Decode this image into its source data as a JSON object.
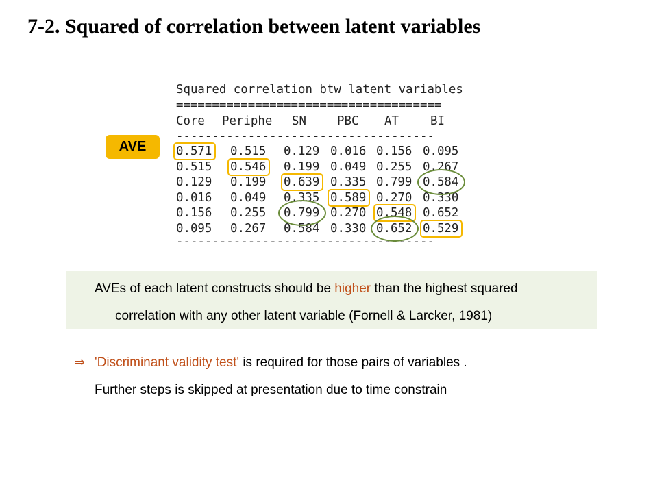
{
  "title": "7-2. Squared of correlation between latent variables",
  "table": {
    "heading": "Squared correlation btw latent variables",
    "double_rule": "=====================================",
    "single_rule": "------------------------------------",
    "columns": [
      "Core",
      "Periphe",
      "SN",
      "PBC",
      "AT",
      "BI"
    ],
    "rows": [
      [
        "0.571",
        "0.515",
        "0.129",
        "0.016",
        "0.156",
        "0.095"
      ],
      [
        "0.515",
        "0.546",
        "0.199",
        "0.049",
        "0.255",
        "0.267"
      ],
      [
        "0.129",
        "0.199",
        "0.639",
        "0.335",
        "0.799",
        "0.584"
      ],
      [
        "0.016",
        "0.049",
        "0.335",
        "0.589",
        "0.270",
        "0.330"
      ],
      [
        "0.156",
        "0.255",
        "0.799",
        "0.270",
        "0.548",
        "0.652"
      ],
      [
        "0.095",
        "0.267",
        "0.584",
        "0.330",
        "0.652",
        "0.529"
      ]
    ]
  },
  "ave_label": "AVE",
  "note": {
    "line1_before": "AVEs of each latent constructs should be ",
    "line1_highlight": "higher",
    "line1_after": " than the highest squared",
    "line2": "correlation  with any other latent variable (Fornell & Larcker, 1981)"
  },
  "conclusion": {
    "arrow": "⇒",
    "highlight": "'Discriminant validity test'",
    "rest": " is required for those pairs of variables .",
    "line2": "Further steps is skipped at presentation due to time constrain"
  },
  "colors": {
    "ave_box": "#f5b800",
    "high_corr_ellipse": "#6a8c3a",
    "highlight_text": "#c0501a",
    "note_background": "#eef3e6"
  }
}
